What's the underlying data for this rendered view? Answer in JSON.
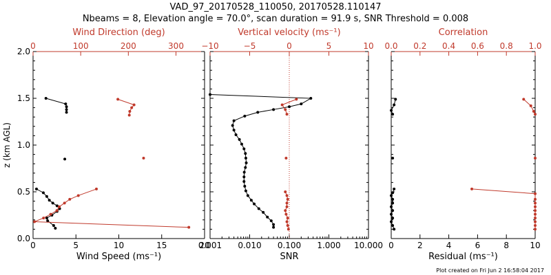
{
  "header": {
    "title": "VAD_97_20170528_110050, 20170528.110147",
    "subtitle": "Nbeams = 8, Elevation angle = 70.0°, scan duration = 91.9 s, SNR Threshold = 0.008"
  },
  "footer": {
    "credit": "Plot created on Fri Jun  2 16:58:04 2017"
  },
  "colors": {
    "black": "#000000",
    "red": "#c0392b"
  },
  "chart_data": [
    {
      "type": "line",
      "panel": "wind",
      "ylabel": "z (km AGL)",
      "ylim": [
        0,
        2.0
      ],
      "y_ticks": [
        0.0,
        0.5,
        1.0,
        1.5,
        2.0
      ],
      "y_tick_labels": [
        "0.0",
        "0.5",
        "1.0",
        "1.5",
        "2.0"
      ],
      "xlabel_bottom": "Wind Speed (ms⁻¹)",
      "xlim_bottom": [
        0,
        20
      ],
      "x_ticks_bottom": [
        0,
        5,
        10,
        15,
        20
      ],
      "x_tick_labels_bottom": [
        "0",
        "5",
        "10",
        "15",
        "20"
      ],
      "xlabel_top": "Wind Direction (deg)",
      "xlim_top": [
        0,
        360
      ],
      "x_ticks_top": [
        0,
        100,
        200,
        300
      ],
      "x_tick_labels_top": [
        "0",
        "100",
        "200",
        "300"
      ],
      "series": [
        {
          "axis": "bottom",
          "color": "black",
          "segments": [
            [
              [
                2.6,
                0.11
              ],
              [
                2.4,
                0.14
              ],
              [
                1.7,
                0.19
              ],
              [
                1.6,
                0.22
              ],
              [
                2.2,
                0.25
              ],
              [
                2.8,
                0.29
              ],
              [
                3.1,
                0.32
              ],
              [
                2.8,
                0.35
              ],
              [
                2.3,
                0.38
              ],
              [
                1.9,
                0.41
              ],
              [
                1.6,
                0.45
              ],
              [
                1.2,
                0.49
              ],
              [
                0.4,
                0.53
              ]
            ],
            [
              [
                3.7,
                0.85
              ]
            ],
            [
              [
                3.9,
                1.35
              ],
              [
                3.9,
                1.38
              ],
              [
                3.9,
                1.41
              ],
              [
                3.8,
                1.44
              ],
              [
                1.5,
                1.5
              ]
            ]
          ]
        },
        {
          "axis": "top",
          "color": "red",
          "segments": [
            [
              [
                327,
                0.12
              ],
              [
                3,
                0.18
              ],
              [
                22,
                0.22
              ],
              [
                37,
                0.26
              ],
              [
                50,
                0.3
              ],
              [
                55,
                0.34
              ],
              [
                66,
                0.38
              ],
              [
                77,
                0.42
              ],
              [
                95,
                0.46
              ],
              [
                133,
                0.53
              ]
            ],
            [
              [
                232,
                0.86
              ]
            ],
            [
              [
                202,
                1.32
              ],
              [
                203,
                1.36
              ],
              [
                207,
                1.4
              ],
              [
                212,
                1.43
              ],
              [
                178,
                1.49
              ]
            ]
          ]
        }
      ]
    },
    {
      "type": "line",
      "panel": "snr",
      "xlabel_bottom": "SNR",
      "x_scale": "log",
      "xlim_bottom": [
        0.001,
        10.0
      ],
      "x_ticks_bottom": [
        0.001,
        0.01,
        0.1,
        1.0,
        10.0
      ],
      "x_tick_labels_bottom": [
        "0.001",
        "0.010",
        "0.100",
        "1.000",
        "10.000"
      ],
      "xlabel_top": "Vertical velocity (ms⁻¹)",
      "xlim_top": [
        -10,
        10
      ],
      "x_ticks_top": [
        -10,
        -5,
        0,
        5,
        10
      ],
      "x_tick_labels_top": [
        "−10",
        "−5",
        "0",
        "5",
        "10"
      ],
      "zero_line_top": 0,
      "series": [
        {
          "axis": "bottom",
          "color": "black",
          "segments": [
            [
              [
                0.04,
                0.12
              ],
              [
                0.04,
                0.15
              ],
              [
                0.035,
                0.19
              ],
              [
                0.028,
                0.23
              ],
              [
                0.022,
                0.28
              ],
              [
                0.017,
                0.32
              ],
              [
                0.013,
                0.37
              ],
              [
                0.011,
                0.41
              ],
              [
                0.009,
                0.46
              ],
              [
                0.008,
                0.51
              ],
              [
                0.0075,
                0.56
              ],
              [
                0.0072,
                0.61
              ],
              [
                0.0072,
                0.66
              ],
              [
                0.0073,
                0.71
              ],
              [
                0.0078,
                0.76
              ],
              [
                0.0082,
                0.81
              ],
              [
                0.008,
                0.86
              ],
              [
                0.0078,
                0.91
              ],
              [
                0.0072,
                0.96
              ],
              [
                0.0063,
                1.01
              ],
              [
                0.0055,
                1.06
              ],
              [
                0.0045,
                1.11
              ],
              [
                0.004,
                1.16
              ],
              [
                0.0037,
                1.21
              ],
              [
                0.004,
                1.26
              ],
              [
                0.0075,
                1.31
              ],
              [
                0.016,
                1.35
              ],
              [
                0.04,
                1.38
              ],
              [
                0.1,
                1.41
              ],
              [
                0.2,
                1.44
              ],
              [
                0.35,
                1.5
              ],
              [
                0.001,
                1.54
              ]
            ]
          ]
        },
        {
          "axis": "top",
          "color": "red",
          "segments": [
            [
              [
                -0.1,
                0.1
              ],
              [
                -0.2,
                0.14
              ],
              [
                -0.3,
                0.18
              ],
              [
                -0.2,
                0.22
              ],
              [
                -0.4,
                0.26
              ],
              [
                -0.5,
                0.3
              ],
              [
                -0.3,
                0.34
              ],
              [
                -0.3,
                0.38
              ],
              [
                -0.2,
                0.42
              ],
              [
                -0.3,
                0.46
              ],
              [
                -0.5,
                0.5
              ]
            ],
            [
              [
                -0.4,
                0.86
              ]
            ],
            [
              [
                -0.3,
                1.33
              ],
              [
                -0.5,
                1.38
              ],
              [
                -0.9,
                1.43
              ],
              [
                0.9,
                1.49
              ]
            ]
          ]
        }
      ]
    },
    {
      "type": "line",
      "panel": "fit",
      "xlabel_bottom": "Residual (ms⁻¹)",
      "xlim_bottom": [
        0,
        10
      ],
      "x_ticks_bottom": [
        0,
        2,
        4,
        6,
        8,
        10
      ],
      "x_tick_labels_bottom": [
        "0",
        "2",
        "4",
        "6",
        "8",
        "10"
      ],
      "xlabel_top": "Correlation",
      "xlim_top": [
        0,
        1.0
      ],
      "x_ticks_top": [
        0,
        0.2,
        0.4,
        0.6,
        0.8,
        1.0
      ],
      "x_tick_labels_top": [
        "0.0",
        "0.2",
        "0.4",
        "0.6",
        "0.8",
        "1.0"
      ],
      "series": [
        {
          "axis": "bottom",
          "color": "black",
          "segments": [
            [
              [
                0.2,
                0.1
              ],
              [
                0.1,
                0.14
              ],
              [
                0.0,
                0.18
              ],
              [
                0.1,
                0.22
              ],
              [
                0.0,
                0.26
              ],
              [
                0.1,
                0.3
              ],
              [
                0.0,
                0.34
              ],
              [
                0.1,
                0.38
              ],
              [
                0.1,
                0.42
              ],
              [
                0.0,
                0.46
              ],
              [
                0.1,
                0.49
              ],
              [
                0.2,
                0.53
              ]
            ],
            [
              [
                0.1,
                0.86
              ]
            ],
            [
              [
                0.1,
                1.33
              ],
              [
                0.0,
                1.37
              ],
              [
                0.2,
                1.43
              ],
              [
                0.3,
                1.49
              ]
            ]
          ]
        },
        {
          "axis": "top",
          "color": "red",
          "segments": [
            [
              [
                1.0,
                0.1
              ],
              [
                1.0,
                0.14
              ],
              [
                1.0,
                0.18
              ],
              [
                1.0,
                0.22
              ],
              [
                1.0,
                0.26
              ],
              [
                1.0,
                0.3
              ],
              [
                1.0,
                0.34
              ],
              [
                1.0,
                0.38
              ],
              [
                1.0,
                0.42
              ],
              [
                1.0,
                0.48
              ],
              [
                0.56,
                0.53
              ]
            ],
            [
              [
                1.0,
                0.86
              ]
            ],
            [
              [
                1.0,
                1.33
              ],
              [
                0.99,
                1.36
              ],
              [
                0.97,
                1.42
              ],
              [
                0.92,
                1.49
              ]
            ]
          ]
        }
      ]
    }
  ]
}
